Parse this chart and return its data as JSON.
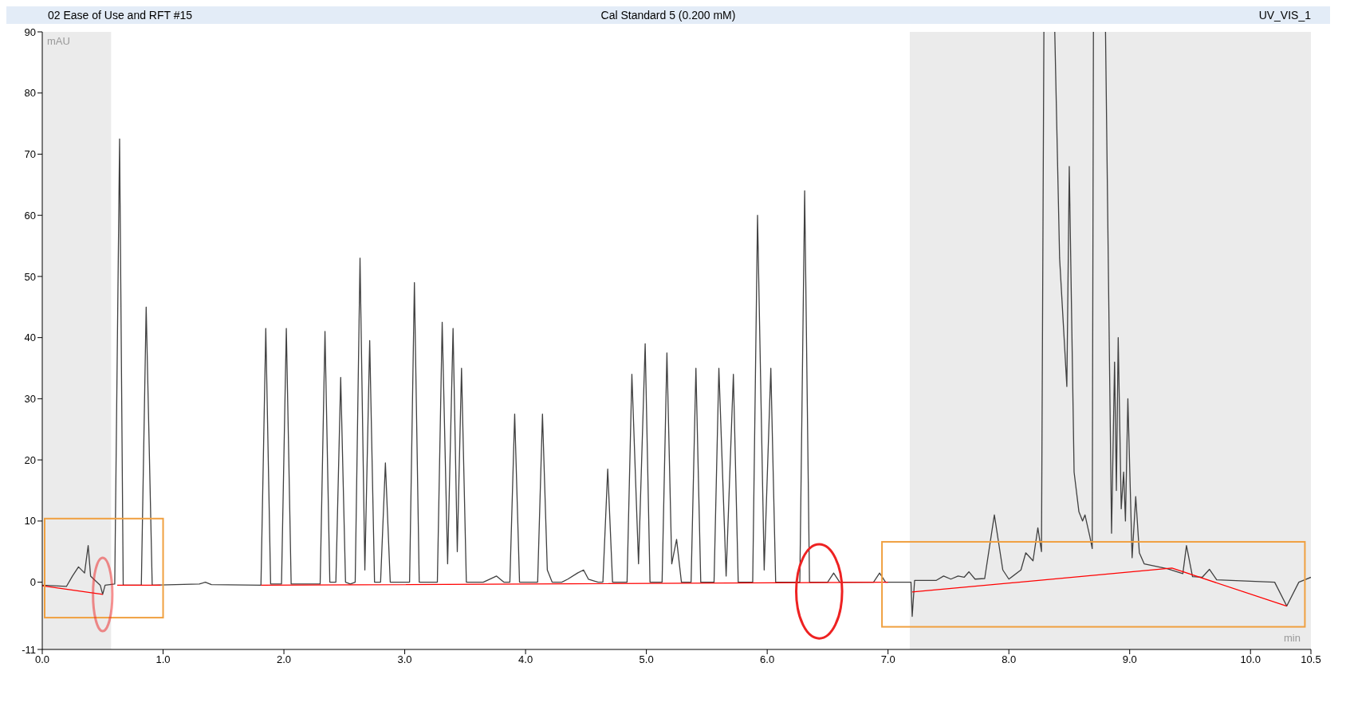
{
  "chart_data": {
    "type": "line",
    "title": "02 Ease of Use and RFT #15",
    "subtitle": "Cal Standard 5 (0.200 mM)",
    "annotations": [
      "UV_VIS_1"
    ],
    "xlabel": "min",
    "ylabel": "mAU",
    "xlim": [
      0,
      10.5
    ],
    "xticks": [
      {
        "value": 0,
        "label": "0.0"
      },
      {
        "value": 1,
        "label": "1.0"
      },
      {
        "value": 2,
        "label": "2.0"
      },
      {
        "value": 3,
        "label": "3.0"
      },
      {
        "value": 4,
        "label": "4.0"
      },
      {
        "value": 5,
        "label": "5.0"
      },
      {
        "value": 6,
        "label": "6.0"
      },
      {
        "value": 7,
        "label": "7.0"
      },
      {
        "value": 8,
        "label": "8.0"
      },
      {
        "value": 9,
        "label": "9.0"
      },
      {
        "value": 10,
        "label": "10.0"
      },
      {
        "value": 10.5,
        "label": "10.5"
      }
    ],
    "ylim": [
      -11,
      90
    ],
    "yticks": [
      -11,
      0,
      10,
      20,
      30,
      40,
      50,
      60,
      70,
      80,
      90
    ],
    "grid": false,
    "marker": "none",
    "line_style": "solid",
    "bands": [
      {
        "axis": "x",
        "from": 0,
        "to": 0.57,
        "color": "#ebebeb"
      },
      {
        "axis": "x",
        "from": 7.18,
        "to": 10.5,
        "color": "#ebebeb"
      }
    ],
    "series": [
      {
        "color": "#404040",
        "x": [
          0,
          0.2,
          0.25,
          0.3,
          0.35,
          0.38,
          0.4,
          0.48,
          0.5,
          0.52,
          0.6,
          0.64,
          0.67,
          0.82,
          0.86,
          0.91,
          1.3,
          1.35,
          1.4,
          1.81,
          1.85,
          1.89,
          1.98,
          2.02,
          2.06,
          2.3,
          2.34,
          2.38,
          2.43,
          2.47,
          2.51,
          2.55,
          2.59,
          2.63,
          2.67,
          2.71,
          2.75,
          2.8,
          2.84,
          2.88,
          3.04,
          3.08,
          3.12,
          3.27,
          3.31,
          3.355,
          3.4,
          3.435,
          3.47,
          3.51,
          3.65,
          3.76,
          3.82,
          3.87,
          3.91,
          3.95,
          4.1,
          4.14,
          4.18,
          4.22,
          4.3,
          4.35,
          4.43,
          4.48,
          4.52,
          4.6,
          4.64,
          4.68,
          4.72,
          4.84,
          4.88,
          4.935,
          4.99,
          5.03,
          5.13,
          5.17,
          5.21,
          5.25,
          5.29,
          5.37,
          5.41,
          5.45,
          5.56,
          5.6,
          5.66,
          5.72,
          5.76,
          5.88,
          5.92,
          5.975,
          6.03,
          6.07,
          6.27,
          6.31,
          6.35,
          6.5,
          6.55,
          6.6,
          6.88,
          6.93,
          6.98,
          7.19,
          7.2,
          7.22,
          7.4,
          7.46,
          7.52,
          7.58,
          7.63,
          7.67,
          7.72,
          7.8,
          7.88,
          7.95,
          8.0,
          8.1,
          8.14,
          8.2,
          8.24,
          8.27,
          8.29,
          8.33,
          8.38,
          8.42,
          8.48,
          8.5,
          8.54,
          8.58,
          8.61,
          8.63,
          8.67,
          8.69,
          8.7,
          8.75,
          8.8,
          8.85,
          8.875,
          8.89,
          8.905,
          8.93,
          8.95,
          8.965,
          8.985,
          9.02,
          9.05,
          9.08,
          9.12,
          9.31,
          9.44,
          9.47,
          9.52,
          9.6,
          9.66,
          9.72,
          10.2,
          10.3,
          10.4,
          10.5
        ],
        "values": [
          -0.5,
          -0.7,
          1,
          2.5,
          1.5,
          6,
          1,
          -0.5,
          -2,
          -0.5,
          -0.3,
          72.5,
          -0.5,
          -0.5,
          45,
          -0.5,
          -0.3,
          0,
          -0.4,
          -0.5,
          41.5,
          -0.3,
          -0.3,
          41.5,
          -0.3,
          -0.3,
          41,
          0,
          0,
          33.5,
          0,
          -0.3,
          0,
          53,
          2,
          39.5,
          0,
          0,
          19.5,
          0,
          0,
          49,
          0,
          0,
          42.5,
          3,
          41.5,
          5,
          35,
          0,
          0,
          1,
          0,
          0,
          27.5,
          0,
          0,
          27.5,
          2,
          0,
          0,
          0.5,
          1.5,
          2,
          0.5,
          0,
          0,
          18.5,
          0,
          0,
          34,
          3,
          39,
          0,
          0,
          37.5,
          3,
          7,
          0,
          0,
          35,
          0,
          0,
          35,
          1,
          34,
          0,
          0,
          60,
          2,
          35,
          0,
          0,
          64,
          0,
          0,
          1.5,
          0,
          0,
          1.5,
          0,
          0,
          -5.6,
          0.3,
          0.3,
          1,
          0.5,
          1,
          0.8,
          1.7,
          0.5,
          0.6,
          11,
          2,
          0.5,
          2,
          4.8,
          3.5,
          8.9,
          5,
          90,
          null,
          90,
          53,
          32,
          68,
          18,
          11.5,
          10,
          11,
          7.5,
          5.5,
          90,
          null,
          90,
          8,
          36,
          15,
          40,
          12,
          18,
          10,
          30,
          4,
          14,
          4.8,
          3,
          2.2,
          1.4,
          6,
          0.9,
          0.8,
          2.1,
          0.4,
          0,
          -3.9,
          0,
          0.8
        ]
      },
      {
        "color": "#ff0000",
        "x": [
          0,
          0.5,
          0.55,
          0.62,
          0.98,
          1.2,
          1.81,
          7.0,
          7.1,
          7.2,
          9.35,
          10.3
        ],
        "values": [
          -0.6,
          -2,
          null,
          -0.5,
          -0.5,
          null,
          -0.5,
          0,
          null,
          -1.6,
          2.3,
          -3.9
        ]
      }
    ]
  }
}
